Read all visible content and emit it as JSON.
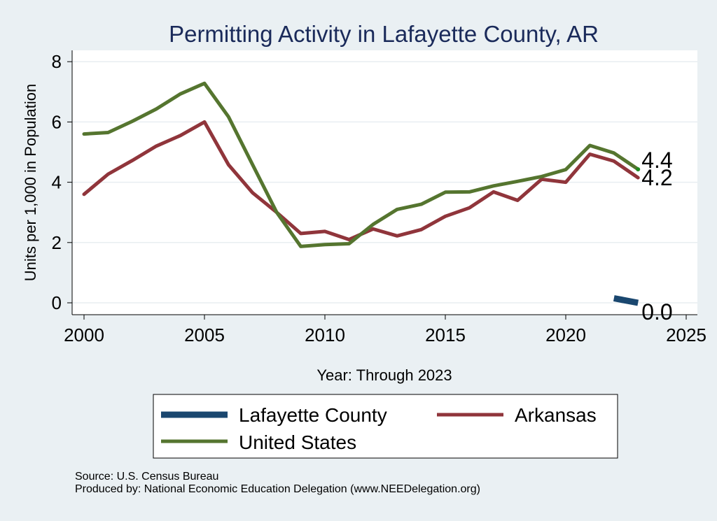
{
  "chart_data": {
    "type": "line",
    "title": "Permitting Activity in Lafayette County, AR",
    "xlabel": "Year: Through 2023",
    "ylabel": "Units per 1,000 in Population",
    "xlim": [
      2000,
      2025
    ],
    "ylim": [
      0,
      8
    ],
    "x_ticks": [
      "2000",
      "2005",
      "2010",
      "2015",
      "2020",
      "2025"
    ],
    "y_ticks": [
      "0",
      "2",
      "4",
      "6",
      "8"
    ],
    "grid": "horizontal",
    "legend_position": "bottom",
    "series": [
      {
        "name": "Lafayette County",
        "color": "#1a476f",
        "x": [
          2022,
          2023
        ],
        "values": [
          0.15,
          0.0
        ],
        "end_label": "0.0"
      },
      {
        "name": "Arkansas",
        "color": "#90353b",
        "x": [
          2000,
          2001,
          2002,
          2003,
          2004,
          2005,
          2006,
          2007,
          2008,
          2009,
          2010,
          2011,
          2012,
          2013,
          2014,
          2015,
          2016,
          2017,
          2018,
          2019,
          2020,
          2021,
          2022,
          2023
        ],
        "values": [
          3.6,
          4.27,
          4.72,
          5.2,
          5.55,
          6.0,
          4.58,
          3.65,
          3.0,
          2.3,
          2.37,
          2.1,
          2.45,
          2.22,
          2.43,
          2.87,
          3.15,
          3.68,
          3.4,
          4.1,
          4.0,
          4.93,
          4.7,
          4.15
        ],
        "end_label": "4.2"
      },
      {
        "name": "United States",
        "color": "#55752f",
        "x": [
          2000,
          2001,
          2002,
          2003,
          2004,
          2005,
          2006,
          2007,
          2008,
          2009,
          2010,
          2011,
          2012,
          2013,
          2014,
          2015,
          2016,
          2017,
          2018,
          2019,
          2020,
          2021,
          2022,
          2023
        ],
        "values": [
          5.6,
          5.65,
          6.02,
          6.43,
          6.93,
          7.28,
          6.17,
          4.58,
          3.0,
          1.87,
          1.93,
          1.96,
          2.6,
          3.1,
          3.27,
          3.67,
          3.68,
          3.88,
          4.03,
          4.19,
          4.42,
          5.22,
          4.97,
          4.43
        ],
        "end_label": "4.4"
      }
    ]
  },
  "legend": {
    "items": [
      {
        "label": "Lafayette County"
      },
      {
        "label": "Arkansas"
      },
      {
        "label": "United States"
      }
    ]
  },
  "footer": {
    "source": "Source: U.S. Census Bureau",
    "produced_by": "Produced by: National Economic Education Delegation (www.NEEDelegation.org)"
  }
}
